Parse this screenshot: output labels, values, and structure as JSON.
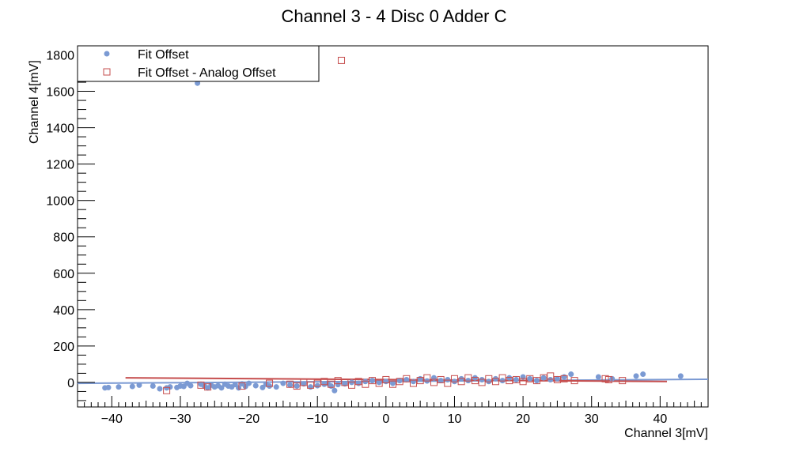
{
  "chart_data": {
    "type": "scatter",
    "title": "Channel 3 - 4 Disc 0 Adder C",
    "xlabel": "Channel 3[mV]",
    "ylabel": "Channel 4[mV]",
    "xlim": [
      -45,
      47
    ],
    "ylim": [
      -135,
      1850
    ],
    "x_ticks": [
      -40,
      -30,
      -20,
      -10,
      0,
      10,
      20,
      30,
      40
    ],
    "y_ticks": [
      0,
      200,
      400,
      600,
      800,
      1000,
      1200,
      1400,
      1600,
      1800
    ],
    "x_tick_labels": [
      "−40",
      "−30",
      "−20",
      "−10",
      "0",
      "10",
      "20",
      "30",
      "40"
    ],
    "y_tick_labels": [
      "0",
      "200",
      "400",
      "600",
      "800",
      "1000",
      "1200",
      "1400",
      "1600",
      "1800"
    ],
    "grid": false,
    "legend_position": "top-left",
    "series": [
      {
        "name": "Fit Offset",
        "marker": "circle",
        "color": "#7b9ad3",
        "fit_line": [
          [
            -45,
            -5
          ],
          [
            47,
            17
          ]
        ],
        "points": [
          [
            -41,
            -30
          ],
          [
            -40.5,
            -28
          ],
          [
            -39,
            -25
          ],
          [
            -37,
            -22
          ],
          [
            -36,
            -15
          ],
          [
            -34,
            -20
          ],
          [
            -33,
            -35
          ],
          [
            -32,
            -30
          ],
          [
            -31.5,
            -25
          ],
          [
            -30.5,
            -28
          ],
          [
            -30,
            -20
          ],
          [
            -29.5,
            -22
          ],
          [
            -29,
            -5
          ],
          [
            -28.5,
            -18
          ],
          [
            -27.5,
            1645
          ],
          [
            -27,
            -10
          ],
          [
            -26.5,
            -20
          ],
          [
            -26,
            -30
          ],
          [
            -25.5,
            -15
          ],
          [
            -25,
            -25
          ],
          [
            -24.5,
            -18
          ],
          [
            -24,
            -30
          ],
          [
            -23.5,
            -10
          ],
          [
            -23,
            -20
          ],
          [
            -22.5,
            -25
          ],
          [
            -22,
            -12
          ],
          [
            -21.5,
            -30
          ],
          [
            -21,
            -8
          ],
          [
            -20.5,
            -22
          ],
          [
            -20,
            -5
          ],
          [
            -19,
            -18
          ],
          [
            -18,
            -28
          ],
          [
            -17.5,
            -10
          ],
          [
            -17,
            -20
          ],
          [
            -16,
            -25
          ],
          [
            -15,
            -5
          ],
          [
            -14,
            -15
          ],
          [
            -13,
            -20
          ],
          [
            -12,
            -8
          ],
          [
            -11,
            -25
          ],
          [
            -10,
            -18
          ],
          [
            -9,
            -10
          ],
          [
            -8.5,
            -5
          ],
          [
            -8,
            -20
          ],
          [
            -7.5,
            -45
          ],
          [
            -7,
            -12
          ],
          [
            -6,
            -8
          ],
          [
            -5,
            0
          ],
          [
            -4,
            -5
          ],
          [
            -3,
            5
          ],
          [
            -2,
            10
          ],
          [
            -1,
            0
          ],
          [
            0,
            5
          ],
          [
            1,
            -5
          ],
          [
            2,
            10
          ],
          [
            3,
            15
          ],
          [
            4,
            5
          ],
          [
            5,
            20
          ],
          [
            6,
            8
          ],
          [
            7,
            25
          ],
          [
            8,
            10
          ],
          [
            9,
            15
          ],
          [
            10,
            5
          ],
          [
            11,
            20
          ],
          [
            12,
            10
          ],
          [
            13,
            25
          ],
          [
            14,
            15
          ],
          [
            15,
            5
          ],
          [
            16,
            20
          ],
          [
            17,
            10
          ],
          [
            18,
            25
          ],
          [
            19,
            15
          ],
          [
            20,
            30
          ],
          [
            21,
            20
          ],
          [
            22,
            10
          ],
          [
            23,
            25
          ],
          [
            24,
            15
          ],
          [
            25,
            20
          ],
          [
            26,
            30
          ],
          [
            27,
            45
          ],
          [
            31,
            30
          ],
          [
            33,
            20
          ],
          [
            36.5,
            35
          ],
          [
            37.5,
            45
          ],
          [
            43,
            35
          ]
        ]
      },
      {
        "name": "Fit Offset - Analog Offset",
        "marker": "open-square",
        "color": "#c64e4e",
        "fit_line": [
          [
            -38,
            25
          ],
          [
            41,
            5
          ]
        ],
        "points": [
          [
            -32,
            -45
          ],
          [
            -27,
            -15
          ],
          [
            -26,
            -25
          ],
          [
            -21,
            -20
          ],
          [
            -17,
            -5
          ],
          [
            -14,
            -10
          ],
          [
            -13,
            -20
          ],
          [
            -12,
            0
          ],
          [
            -11,
            -15
          ],
          [
            -10,
            -5
          ],
          [
            -9,
            5
          ],
          [
            -8,
            -10
          ],
          [
            -7,
            10
          ],
          [
            -6.5,
            1770
          ],
          [
            -6,
            0
          ],
          [
            -5,
            -15
          ],
          [
            -4,
            5
          ],
          [
            -3,
            -10
          ],
          [
            -2,
            10
          ],
          [
            -1,
            -5
          ],
          [
            0,
            15
          ],
          [
            1,
            -10
          ],
          [
            2,
            5
          ],
          [
            3,
            20
          ],
          [
            4,
            -5
          ],
          [
            5,
            10
          ],
          [
            6,
            25
          ],
          [
            7,
            0
          ],
          [
            8,
            15
          ],
          [
            9,
            -5
          ],
          [
            10,
            20
          ],
          [
            11,
            5
          ],
          [
            12,
            25
          ],
          [
            13,
            10
          ],
          [
            14,
            0
          ],
          [
            15,
            20
          ],
          [
            16,
            5
          ],
          [
            17,
            25
          ],
          [
            18,
            10
          ],
          [
            19,
            15
          ],
          [
            20,
            5
          ],
          [
            21,
            20
          ],
          [
            22,
            10
          ],
          [
            23,
            25
          ],
          [
            24,
            35
          ],
          [
            25,
            15
          ],
          [
            26,
            20
          ],
          [
            27.5,
            10
          ],
          [
            32,
            20
          ],
          [
            32.5,
            15
          ],
          [
            34.5,
            10
          ]
        ]
      }
    ]
  }
}
